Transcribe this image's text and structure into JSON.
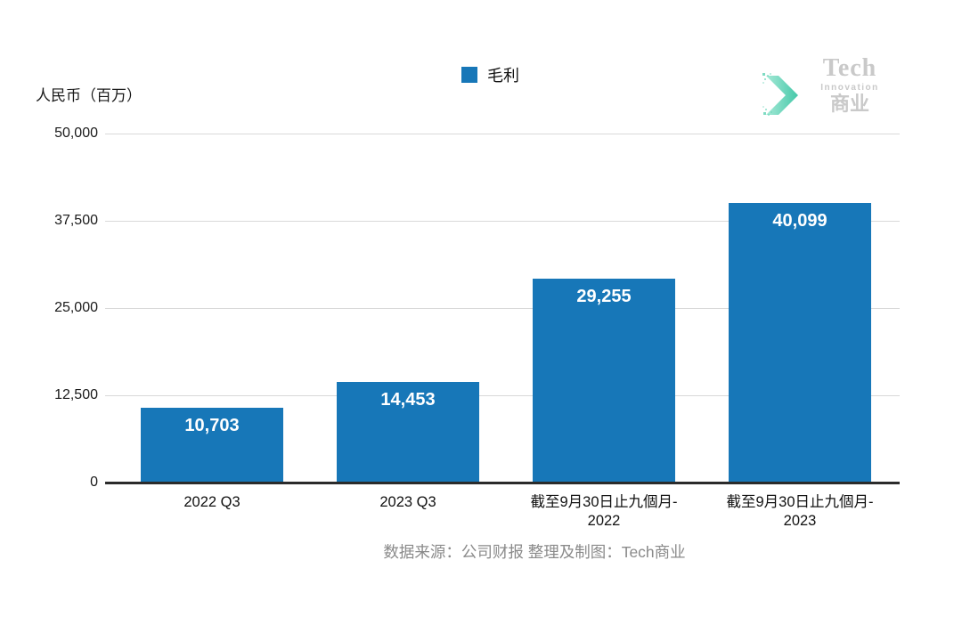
{
  "header": {
    "unit_label": "人民币（百万）",
    "legend": {
      "label": "毛利",
      "color": "#1777B8"
    },
    "logo": {
      "name": "Tech",
      "sub": "Innovation",
      "cn": "商业"
    }
  },
  "footer": {
    "source": "数据来源：公司财报 整理及制图：Tech商业"
  },
  "chart_data": {
    "type": "bar",
    "title": "",
    "unit": "人民币（百万）",
    "legend_entries": [
      "毛利"
    ],
    "legend_position": "top-center",
    "categories": [
      "2022 Q3",
      "2023 Q3",
      "截至9月30日止九個月-\n2022",
      "截至9月30日止九個月-\n2023"
    ],
    "values": [
      10703,
      14453,
      29255,
      40099
    ],
    "value_labels": [
      "10,703",
      "14,453",
      "29,255",
      "40,099"
    ],
    "ylim": [
      0,
      50000
    ],
    "yticks": [
      0,
      12500,
      25000,
      37500,
      50000
    ],
    "ytick_labels": [
      "0",
      "12,500",
      "25,000",
      "37,500",
      "50,000"
    ],
    "bar_color": "#1777B8",
    "grid": true
  }
}
